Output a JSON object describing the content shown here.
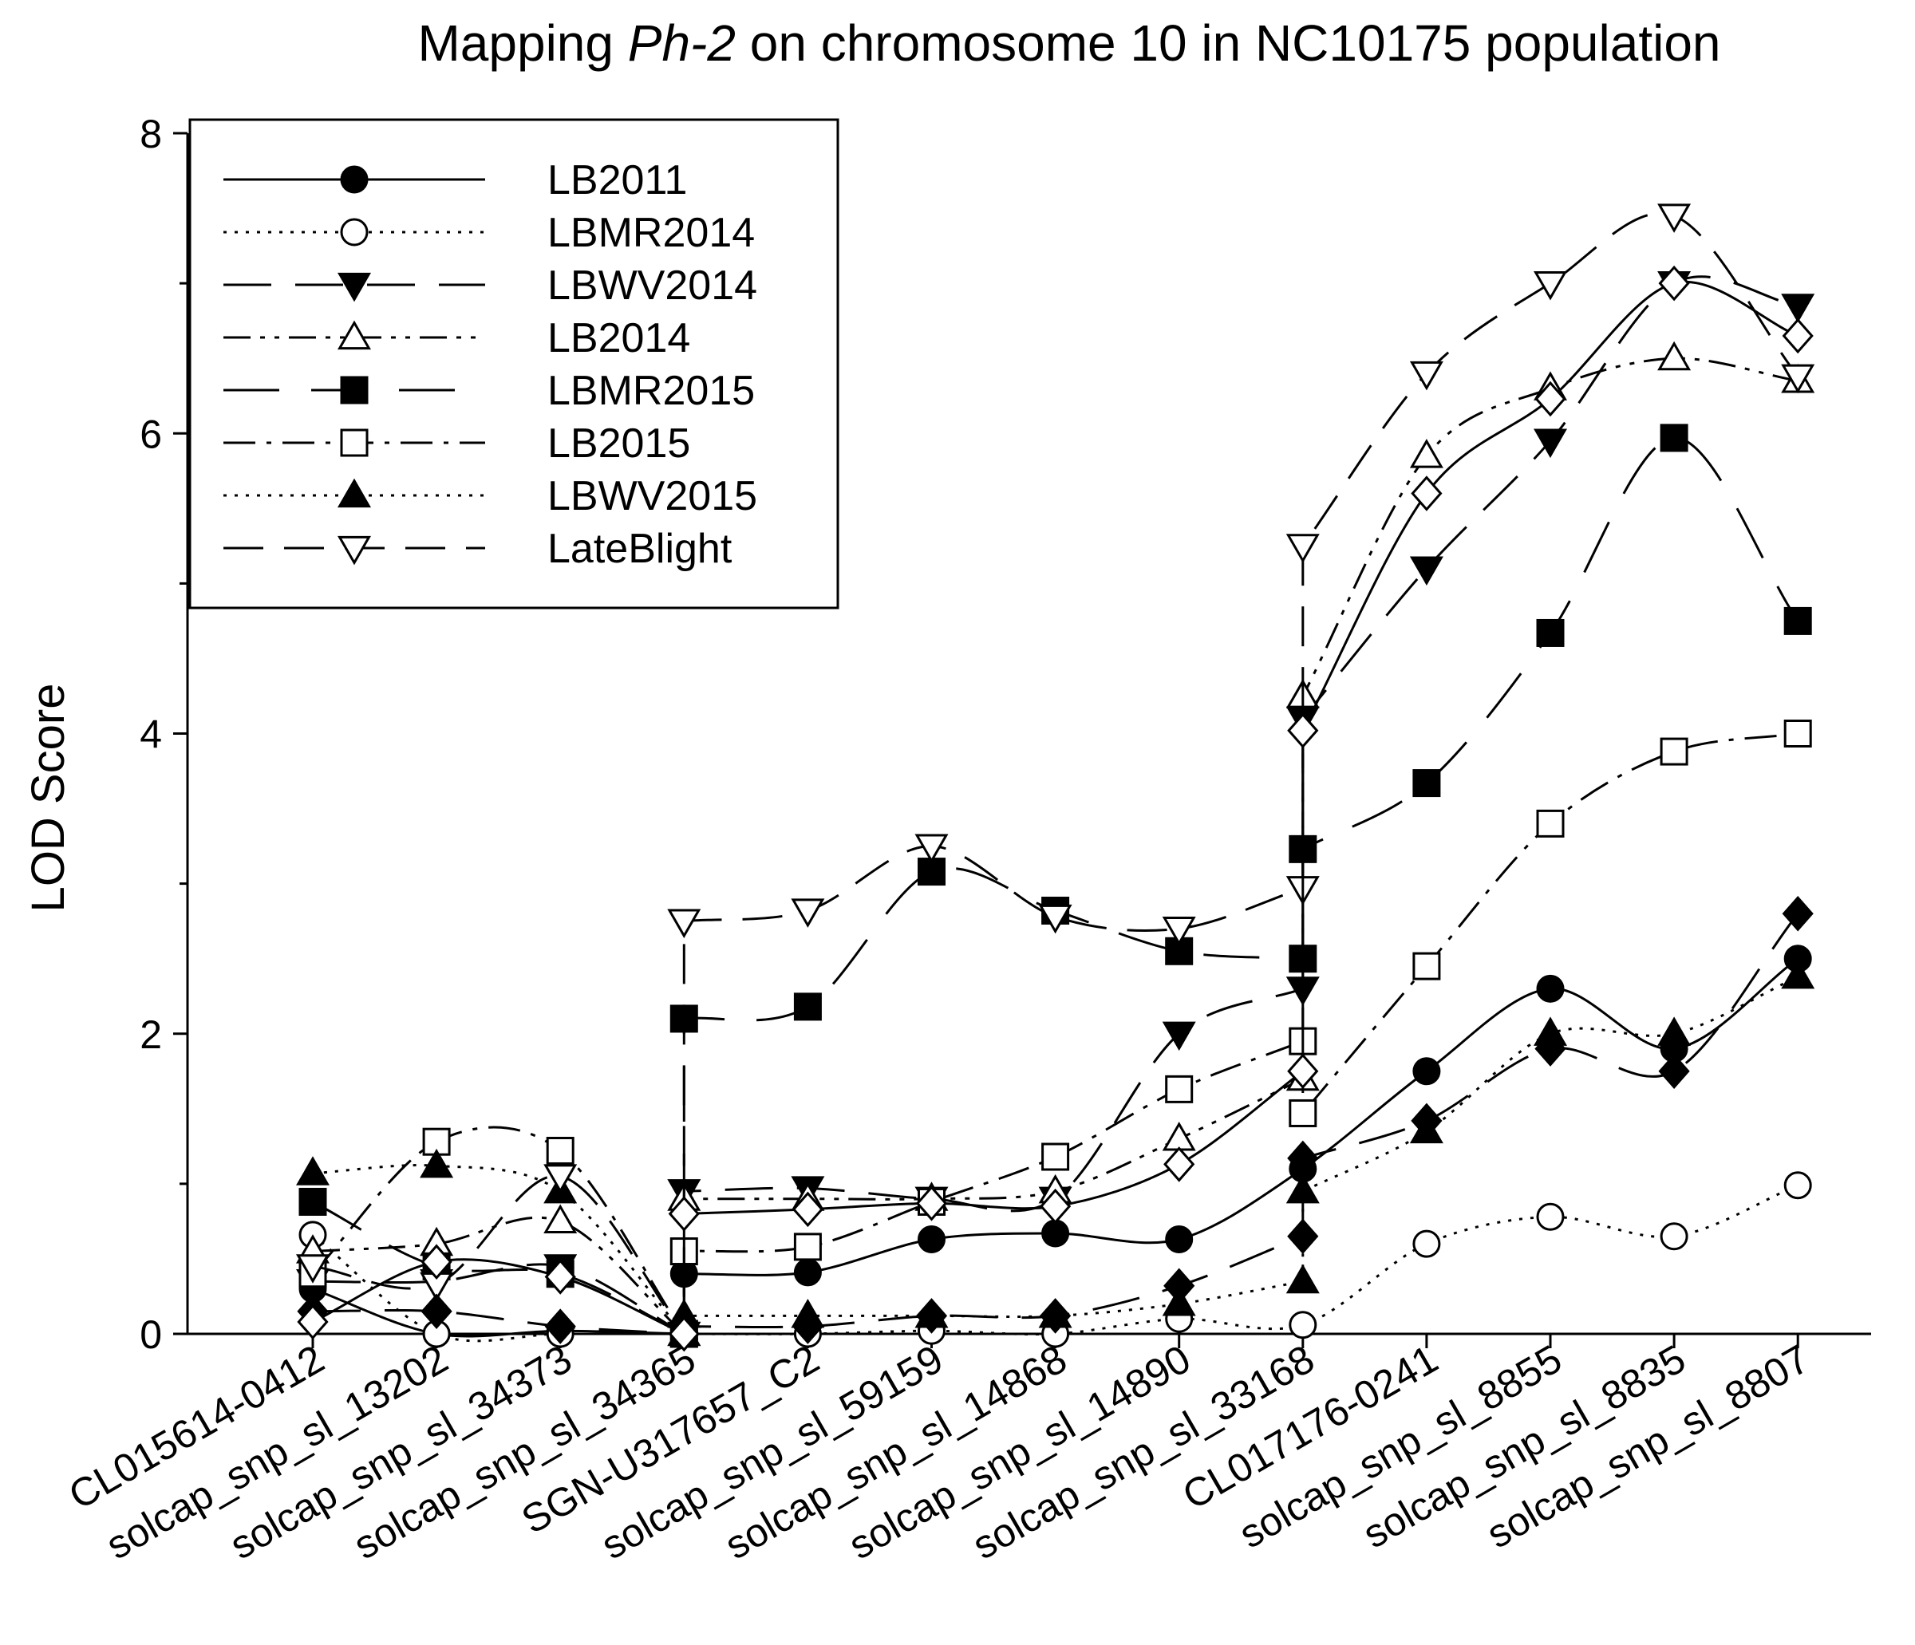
{
  "chart_data": {
    "type": "line",
    "title": "Mapping Ph-2 on chromosome 10 in NC10175 population",
    "title_parts": {
      "pre": "Mapping ",
      "italic": "Ph-2",
      "post": " on chromosome 10 in NC10175 population"
    },
    "xlabel": "",
    "ylabel": "LOD Score",
    "ylim": [
      0,
      8
    ],
    "yticks": [
      0,
      2,
      4,
      6,
      8
    ],
    "grid": false,
    "legend_position": "top-left",
    "categories": [
      "CL015614-0412",
      "solcap_snp_sl_13202",
      "solcap_snp_sl_34373",
      "solcap_snp_sl_34365",
      "SGN-U317657_C2",
      "solcap_snp_sl_59159",
      "solcap_snp_sl_14868",
      "solcap_snp_sl_14890",
      "solcap_snp_sl_33168",
      "CL017176-0241",
      "solcap_snp_sl_8855",
      "solcap_snp_sl_8835",
      "solcap_snp_sl_8807"
    ],
    "series": [
      {
        "name": "LB2011",
        "marker": "circle",
        "filled": true,
        "dash": "",
        "points": [
          [
            0,
            0.3
          ],
          [
            1,
            0.0
          ],
          [
            2,
            0.02
          ],
          [
            3,
            0.0
          ],
          [
            3,
            0.4
          ],
          [
            4,
            0.41
          ],
          [
            5,
            0.63
          ],
          [
            6,
            0.67
          ],
          [
            7,
            0.63
          ],
          [
            8,
            1.1
          ],
          [
            9,
            1.75
          ],
          [
            10,
            2.3
          ],
          [
            11,
            1.9
          ],
          [
            12,
            2.5
          ]
        ]
      },
      {
        "name": "LBMR2014",
        "marker": "circle",
        "filled": false,
        "dash": "4 10",
        "points": [
          [
            0,
            0.66
          ],
          [
            1,
            0.0
          ],
          [
            2,
            0.0
          ],
          [
            3,
            0.0
          ],
          [
            4,
            0.0
          ],
          [
            5,
            0.02
          ],
          [
            6,
            0.0
          ],
          [
            7,
            0.1
          ],
          [
            8,
            0.06
          ],
          [
            9,
            0.6
          ],
          [
            10,
            0.78
          ],
          [
            11,
            0.65
          ],
          [
            12,
            0.99
          ]
        ]
      },
      {
        "name": "LBWV2014",
        "marker": "triangle-down",
        "filled": true,
        "dash": "60 30",
        "points": [
          [
            0,
            0.35
          ],
          [
            1,
            0.35
          ],
          [
            2,
            0.45
          ],
          [
            3,
            0.0
          ],
          [
            3,
            0.95
          ],
          [
            4,
            0.97
          ],
          [
            5,
            0.9
          ],
          [
            6,
            0.9
          ],
          [
            7,
            2.0
          ],
          [
            8,
            2.3
          ],
          [
            8,
            4.1
          ],
          [
            9,
            5.1
          ],
          [
            10,
            5.95
          ],
          [
            11,
            7.0
          ],
          [
            12,
            6.85
          ]
        ]
      },
      {
        "name": "LB2014",
        "marker": "triangle-up",
        "filled": false,
        "dash": "34 12 6 12 6 12",
        "points": [
          [
            0,
            0.55
          ],
          [
            1,
            0.6
          ],
          [
            2,
            0.75
          ],
          [
            3,
            0.0
          ],
          [
            3,
            0.9
          ],
          [
            4,
            0.9
          ],
          [
            5,
            0.9
          ],
          [
            6,
            0.95
          ],
          [
            7,
            1.3
          ],
          [
            8,
            1.7
          ],
          [
            8,
            4.25
          ],
          [
            9,
            5.85
          ],
          [
            10,
            6.3
          ],
          [
            11,
            6.5
          ],
          [
            12,
            6.35
          ]
        ]
      },
      {
        "name": "LBMR2015",
        "marker": "square",
        "filled": true,
        "dash": "70 40",
        "points": [
          [
            0,
            0.88
          ],
          [
            1,
            0.45
          ],
          [
            2,
            0.4
          ],
          [
            3,
            0.0
          ],
          [
            3,
            2.1
          ],
          [
            4,
            2.18
          ],
          [
            5,
            3.08
          ],
          [
            6,
            2.82
          ],
          [
            7,
            2.55
          ],
          [
            8,
            2.5
          ],
          [
            8,
            3.23
          ],
          [
            9,
            3.67
          ],
          [
            10,
            4.67
          ],
          [
            11,
            5.97
          ],
          [
            12,
            4.75
          ]
        ]
      },
      {
        "name": "LB2015",
        "marker": "square",
        "filled": false,
        "dash": "40 14 6 14",
        "points": [
          [
            0,
            0.4
          ],
          [
            1,
            1.28
          ],
          [
            2,
            1.22
          ],
          [
            3,
            0.0
          ],
          [
            3,
            0.55
          ],
          [
            4,
            0.58
          ],
          [
            5,
            0.88
          ],
          [
            6,
            1.18
          ],
          [
            7,
            1.63
          ],
          [
            8,
            1.95
          ],
          [
            8,
            1.47
          ],
          [
            9,
            2.45
          ],
          [
            10,
            3.4
          ],
          [
            11,
            3.88
          ],
          [
            12,
            4.0
          ]
        ]
      },
      {
        "name": "LBWV2015",
        "marker": "triangle-up",
        "filled": true,
        "dash": "4 10",
        "points": [
          [
            0,
            1.07
          ],
          [
            1,
            1.12
          ],
          [
            2,
            0.95
          ],
          [
            3,
            0.0
          ],
          [
            3,
            0.12
          ],
          [
            4,
            0.12
          ],
          [
            5,
            0.12
          ],
          [
            6,
            0.12
          ],
          [
            7,
            0.2
          ],
          [
            8,
            0.35
          ],
          [
            8,
            0.95
          ],
          [
            9,
            1.35
          ],
          [
            10,
            2.0
          ],
          [
            11,
            2.0
          ],
          [
            12,
            2.38
          ]
        ]
      },
      {
        "name": "LateBlight",
        "marker": "triangle-down",
        "filled": false,
        "dash": "50 26",
        "points": [
          [
            0,
            0.45
          ],
          [
            1,
            0.33
          ],
          [
            2,
            1.05
          ],
          [
            3,
            0.0
          ],
          [
            3,
            2.75
          ],
          [
            4,
            2.82
          ],
          [
            5,
            3.25
          ],
          [
            6,
            2.78
          ],
          [
            7,
            2.7
          ],
          [
            8,
            2.97
          ],
          [
            8,
            5.25
          ],
          [
            9,
            6.4
          ],
          [
            10,
            7.0
          ],
          [
            11,
            7.45
          ],
          [
            12,
            6.38
          ]
        ]
      }
    ],
    "extra_series": [
      {
        "name": "",
        "marker": "diamond",
        "filled": true,
        "dash": "60 30",
        "points": [
          [
            0,
            0.15
          ],
          [
            1,
            0.15
          ],
          [
            2,
            0.05
          ],
          [
            3,
            0.0
          ],
          [
            3,
            0.05
          ],
          [
            4,
            0.05
          ],
          [
            5,
            0.12
          ],
          [
            6,
            0.12
          ],
          [
            7,
            0.32
          ],
          [
            8,
            0.65
          ],
          [
            8,
            1.17
          ],
          [
            9,
            1.42
          ],
          [
            10,
            1.9
          ],
          [
            11,
            1.75
          ],
          [
            12,
            2.8
          ]
        ]
      },
      {
        "name": "",
        "marker": "diamond",
        "filled": false,
        "dash": "",
        "points": [
          [
            0,
            0.08
          ],
          [
            1,
            0.48
          ],
          [
            2,
            0.38
          ],
          [
            3,
            0.0
          ],
          [
            3,
            0.8
          ],
          [
            4,
            0.83
          ],
          [
            5,
            0.87
          ],
          [
            6,
            0.85
          ],
          [
            7,
            1.13
          ],
          [
            8,
            1.75
          ],
          [
            8,
            4.02
          ],
          [
            9,
            5.6
          ],
          [
            10,
            6.23
          ],
          [
            11,
            7.0
          ],
          [
            12,
            6.65
          ]
        ]
      }
    ]
  }
}
